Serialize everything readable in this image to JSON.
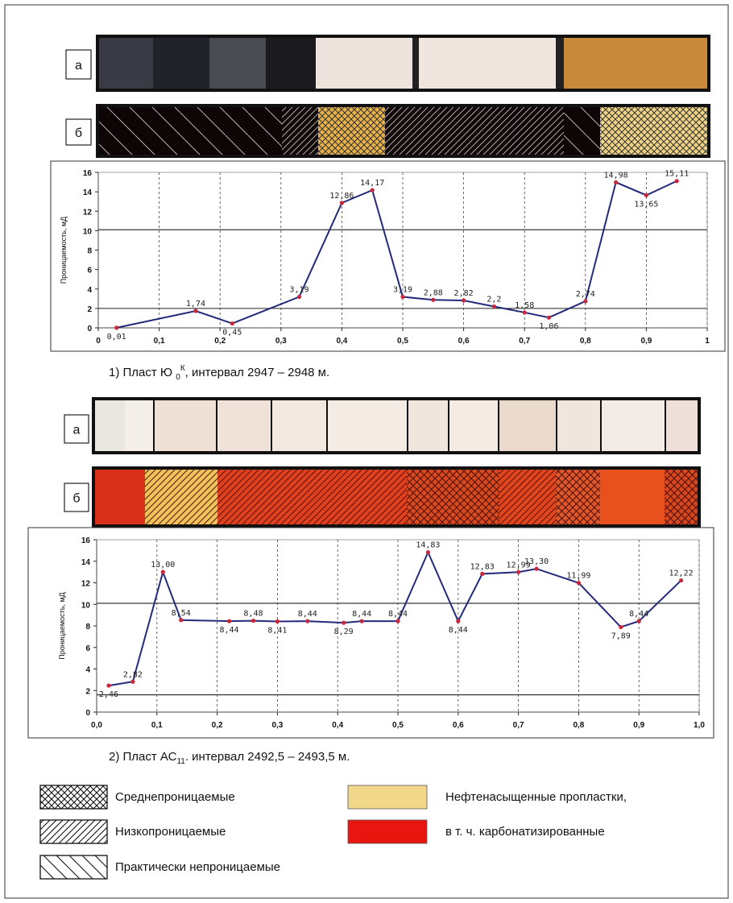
{
  "chart_data": [
    {
      "type": "line",
      "strip_labels": [
        "а",
        "б"
      ],
      "x": [
        0.03,
        0.16,
        0.22,
        0.33,
        0.4,
        0.45,
        0.5,
        0.55,
        0.6,
        0.65,
        0.7,
        0.74,
        0.8,
        0.85,
        0.9,
        0.95
      ],
      "values": [
        0.01,
        1.74,
        0.45,
        3.19,
        12.86,
        14.17,
        3.19,
        2.88,
        2.82,
        2.2,
        1.58,
        1.06,
        2.74,
        14.98,
        13.65,
        15.11
      ],
      "value_labels": [
        "0,01",
        "1,74",
        "0,45",
        "3,19",
        "12,86",
        "14,17",
        "3,19",
        "2,88",
        "2,82",
        "2,2",
        "1,58",
        "1,06",
        "2,74",
        "14,98",
        "13,65",
        "15,11"
      ],
      "xlim": [
        0,
        1
      ],
      "xticks": [
        0,
        {
          "value": 0.1,
          "label": "0,1"
        },
        {
          "value": 0.2,
          "label": "0,2"
        },
        {
          "value": 0.3,
          "label": "0,3"
        },
        {
          "value": 0.4,
          "label": "0,4"
        },
        {
          "value": 0.5,
          "label": "0,5"
        },
        {
          "value": 0.6,
          "label": "0,6"
        },
        {
          "value": 0.7,
          "label": "0,7"
        },
        {
          "value": 0.8,
          "label": "0,8"
        },
        {
          "value": 0.9,
          "label": "0,9"
        },
        1
      ],
      "ylim": [
        0,
        16
      ],
      "yticks": [
        0,
        2,
        4,
        6,
        8,
        10,
        12,
        14,
        16
      ],
      "y_label": "Проницаемость, мД",
      "reference_lines": [
        10.1,
        2.0
      ],
      "color": "#232a7c",
      "marker_color": "#c8283a",
      "grid": "x-dashed",
      "caption": [
        {
          "text": "1) Пласт Ю "
        },
        {
          "text": "0",
          "shift": "sub"
        },
        {
          "text": "К",
          "shift": "sup"
        },
        {
          "text": ", интервал 2947 – 2948 м."
        }
      ]
    },
    {
      "type": "line",
      "strip_labels": [
        "а",
        "б"
      ],
      "x": [
        0.02,
        0.06,
        0.11,
        0.14,
        0.22,
        0.26,
        0.3,
        0.35,
        0.41,
        0.44,
        0.5,
        0.55,
        0.6,
        0.64,
        0.7,
        0.73,
        0.8,
        0.87,
        0.9,
        0.97
      ],
      "values": [
        2.46,
        2.82,
        13.0,
        8.54,
        8.44,
        8.48,
        8.41,
        8.44,
        8.29,
        8.44,
        8.44,
        14.83,
        8.44,
        12.83,
        12.99,
        13.3,
        11.99,
        7.89,
        8.44,
        12.22
      ],
      "value_labels": [
        "2,46",
        "2,82",
        "13,00",
        "8,54",
        "8,44",
        "8,48",
        "8,41",
        "8,44",
        "8,29",
        "8,44",
        "8,44",
        "14,83",
        "8,44",
        "12,83",
        "12,99",
        "13,30",
        "11,99",
        "7,89",
        "8,44",
        "12,22"
      ],
      "xlim": [
        0,
        1
      ],
      "xticks": [
        {
          "value": 0,
          "label": "0,0"
        },
        {
          "value": 0.1,
          "label": "0,1"
        },
        {
          "value": 0.2,
          "label": "0,2"
        },
        {
          "value": 0.3,
          "label": "0,3"
        },
        {
          "value": 0.4,
          "label": "0,4"
        },
        {
          "value": 0.5,
          "label": "0,5"
        },
        {
          "value": 0.6,
          "label": "0,6"
        },
        {
          "value": 0.7,
          "label": "0,7"
        },
        {
          "value": 0.8,
          "label": "0,8"
        },
        {
          "value": 0.9,
          "label": "0,9"
        },
        {
          "value": 1,
          "label": "1,0"
        }
      ],
      "ylim": [
        0,
        16
      ],
      "yticks": [
        0,
        2,
        4,
        6,
        8,
        10,
        12,
        14,
        16
      ],
      "y_label": "Проницаемость, мД",
      "reference_lines": [
        10.1,
        1.6
      ],
      "color": "#232a7c",
      "marker_color": "#c8283a",
      "grid": "x-dashed",
      "caption": [
        {
          "text": "2) Пласт АС"
        },
        {
          "text": "11",
          "shift": "sub"
        },
        {
          "text": ". интервал 2492,5 – 2493,5 м."
        }
      ]
    }
  ],
  "legend": {
    "items": [
      {
        "label": "Среднепроницаемые",
        "pattern": "cross"
      },
      {
        "label": "Низкопроницаемые",
        "pattern": "diag"
      },
      {
        "label": "Практически непроницаемые",
        "pattern": "anti"
      },
      {
        "label": "Нефтенасыщенные пропластки,",
        "color": "#f2d88a"
      },
      {
        "label": "в т. ч. карбонатизированные",
        "color": "#e8160e"
      }
    ]
  }
}
